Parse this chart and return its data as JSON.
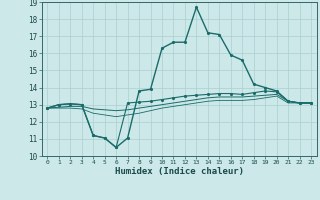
{
  "xlabel": "Humidex (Indice chaleur)",
  "bg_color": "#cce8e8",
  "grid_color": "#aacfcf",
  "line_color": "#1a6b6b",
  "xlim": [
    -0.5,
    23.5
  ],
  "ylim": [
    10,
    19
  ],
  "xticks": [
    0,
    1,
    2,
    3,
    4,
    5,
    6,
    7,
    8,
    9,
    10,
    11,
    12,
    13,
    14,
    15,
    16,
    17,
    18,
    19,
    20,
    21,
    22,
    23
  ],
  "yticks": [
    10,
    11,
    12,
    13,
    14,
    15,
    16,
    17,
    18,
    19
  ],
  "lines": [
    {
      "y": [
        12.8,
        13.0,
        13.05,
        13.0,
        11.2,
        11.05,
        10.5,
        11.05,
        13.8,
        13.9,
        16.3,
        16.65,
        16.65,
        18.7,
        17.2,
        17.1,
        15.9,
        15.6,
        14.2,
        14.0,
        13.8,
        13.2,
        13.1,
        13.1
      ],
      "marker": true,
      "lw": 1.0
    },
    {
      "y": [
        12.8,
        13.0,
        13.05,
        13.0,
        11.2,
        11.05,
        10.5,
        13.1,
        13.15,
        13.2,
        13.3,
        13.4,
        13.5,
        13.55,
        13.6,
        13.65,
        13.65,
        13.6,
        13.7,
        13.8,
        13.75,
        13.2,
        13.1,
        13.1
      ],
      "marker": true,
      "lw": 0.8
    },
    {
      "y": [
        12.8,
        12.85,
        12.9,
        12.9,
        12.75,
        12.7,
        12.65,
        12.7,
        12.8,
        12.9,
        13.0,
        13.1,
        13.2,
        13.3,
        13.4,
        13.45,
        13.45,
        13.45,
        13.5,
        13.55,
        13.6,
        13.2,
        13.1,
        13.1
      ],
      "marker": false,
      "lw": 0.7
    },
    {
      "y": [
        12.8,
        12.8,
        12.8,
        12.75,
        12.5,
        12.4,
        12.3,
        12.4,
        12.5,
        12.65,
        12.8,
        12.9,
        13.0,
        13.1,
        13.2,
        13.25,
        13.25,
        13.25,
        13.3,
        13.4,
        13.5,
        13.1,
        13.1,
        13.1
      ],
      "marker": false,
      "lw": 0.6
    }
  ]
}
